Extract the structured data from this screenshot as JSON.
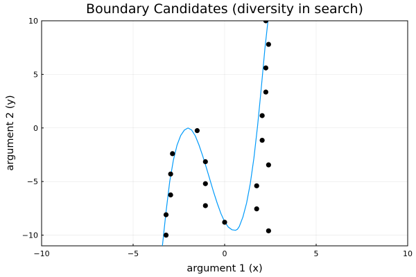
{
  "chart_data": {
    "type": "scatter",
    "title": "Boundary Candidates (diversity in search)",
    "xlabel": "argument 1 (x)",
    "ylabel": "argument 2 (y)",
    "xlim": [
      -10,
      10
    ],
    "ylim": [
      -11,
      10
    ],
    "xticks": [
      -10,
      -5,
      0,
      5,
      10
    ],
    "xtick_labels": [
      "−10",
      "−5",
      "0",
      "5",
      "10"
    ],
    "yticks": [
      -10,
      -5,
      0,
      5,
      10
    ],
    "ytick_labels": [
      "−10",
      "−5",
      "0",
      "5",
      "10"
    ],
    "grid": true,
    "legend": "none",
    "series": [
      {
        "type": "line",
        "color": "#009AFA",
        "x": [
          -3.4,
          -3.2,
          -3.0,
          -2.8,
          -2.6,
          -2.4,
          -2.2,
          -2.0,
          -1.8,
          -1.6,
          -1.4,
          -1.2,
          -1.0,
          -0.8,
          -0.6,
          -0.4,
          -0.2,
          0.0,
          0.2,
          0.4,
          0.6,
          0.7,
          0.8,
          1.0,
          1.2,
          1.4,
          1.6,
          1.8,
          2.0,
          2.2,
          2.4,
          2.5
        ],
        "y": [
          -11.0,
          -7.8,
          -5.0,
          -3.0,
          -1.6,
          -0.7,
          -0.2,
          0.0,
          -0.2,
          -0.75,
          -1.6,
          -2.6,
          -3.7,
          -4.85,
          -6.0,
          -7.05,
          -8.0,
          -8.75,
          -9.25,
          -9.5,
          -9.55,
          -9.45,
          -9.2,
          -8.3,
          -7.0,
          -5.2,
          -2.8,
          0.2,
          3.7,
          7.4,
          10.5,
          12.2
        ]
      },
      {
        "type": "scatter",
        "color": "#000000",
        "x": [
          -2.85,
          -2.95,
          -2.95,
          -3.2,
          -3.2,
          -1.5,
          -1.05,
          -1.05,
          -1.05,
          0.0,
          1.75,
          1.75,
          2.05,
          2.05,
          2.25,
          2.25,
          2.4,
          2.4,
          2.4,
          2.25
        ],
        "y": [
          -2.4,
          -4.3,
          -6.25,
          -8.1,
          -10.0,
          -0.25,
          -3.15,
          -5.2,
          -7.25,
          -8.8,
          -5.4,
          -7.55,
          -1.15,
          1.15,
          3.35,
          5.6,
          7.8,
          -3.45,
          -9.6,
          10.0
        ]
      }
    ]
  }
}
